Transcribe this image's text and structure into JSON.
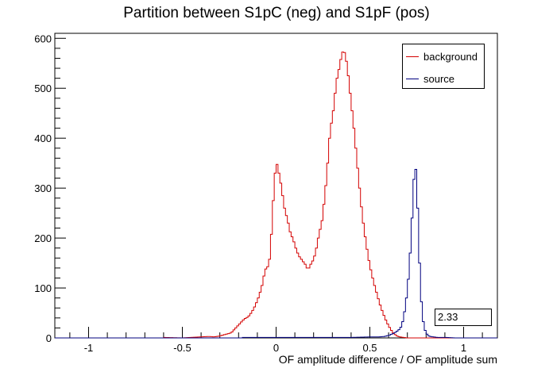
{
  "chart_data": {
    "type": "histogram",
    "title": "Partition between S1pC (neg) and S1pF (pos)",
    "xlabel": "OF amplitude difference / OF amplitude sum",
    "ylabel": "",
    "xlim": [
      -1.18,
      1.18
    ],
    "ylim": [
      0,
      610
    ],
    "x_ticks": [
      -1,
      -0.5,
      0,
      0.5,
      1
    ],
    "x_tick_labels": [
      "-1",
      "-0.5",
      "0",
      "0.5",
      "1"
    ],
    "y_ticks": [
      0,
      100,
      200,
      300,
      400,
      500,
      600
    ],
    "y_tick_labels": [
      "0",
      "100",
      "200",
      "300",
      "400",
      "500",
      "600"
    ],
    "legend": {
      "position": "top-right",
      "entries": [
        "background",
        "source"
      ]
    },
    "stat_box": "2.33",
    "bin_start": -1.18,
    "bin_width": 0.01,
    "series": [
      {
        "name": "background",
        "color": "#d40000",
        "points": [
          [
            -0.6,
            1
          ],
          [
            -0.5,
            0
          ],
          [
            -0.45,
            1
          ],
          [
            -0.4,
            2
          ],
          [
            -0.36,
            3
          ],
          [
            -0.33,
            2
          ],
          [
            -0.3,
            4
          ],
          [
            -0.28,
            6
          ],
          [
            -0.26,
            8
          ],
          [
            -0.24,
            10
          ],
          [
            -0.23,
            14
          ],
          [
            -0.22,
            18
          ],
          [
            -0.21,
            22
          ],
          [
            -0.2,
            26
          ],
          [
            -0.19,
            30
          ],
          [
            -0.18,
            34
          ],
          [
            -0.17,
            38
          ],
          [
            -0.16,
            40
          ],
          [
            -0.15,
            42
          ],
          [
            -0.14,
            46
          ],
          [
            -0.13,
            52
          ],
          [
            -0.12,
            58
          ],
          [
            -0.11,
            66
          ],
          [
            -0.1,
            75
          ],
          [
            -0.09,
            85
          ],
          [
            -0.08,
            98
          ],
          [
            -0.07,
            112
          ],
          [
            -0.06,
            136
          ],
          [
            -0.05,
            140
          ],
          [
            -0.04,
            145
          ],
          [
            -0.03,
            170
          ],
          [
            -0.02,
            245
          ],
          [
            -0.01,
            305
          ],
          [
            0.0,
            355
          ],
          [
            0.01,
            340
          ],
          [
            0.02,
            320
          ],
          [
            0.03,
            300
          ],
          [
            0.04,
            270
          ],
          [
            0.05,
            250
          ],
          [
            0.06,
            240
          ],
          [
            0.07,
            220
          ],
          [
            0.08,
            205
          ],
          [
            0.09,
            200
          ],
          [
            0.1,
            185
          ],
          [
            0.11,
            175
          ],
          [
            0.12,
            165
          ],
          [
            0.13,
            160
          ],
          [
            0.14,
            155
          ],
          [
            0.15,
            150
          ],
          [
            0.16,
            145
          ],
          [
            0.17,
            135
          ],
          [
            0.18,
            145
          ],
          [
            0.19,
            150
          ],
          [
            0.2,
            158
          ],
          [
            0.21,
            170
          ],
          [
            0.22,
            190
          ],
          [
            0.23,
            210
          ],
          [
            0.24,
            225
          ],
          [
            0.25,
            245
          ],
          [
            0.26,
            290
          ],
          [
            0.27,
            320
          ],
          [
            0.28,
            380
          ],
          [
            0.29,
            420
          ],
          [
            0.3,
            440
          ],
          [
            0.31,
            470
          ],
          [
            0.32,
            510
          ],
          [
            0.33,
            530
          ],
          [
            0.34,
            545
          ],
          [
            0.35,
            570
          ],
          [
            0.36,
            575
          ],
          [
            0.37,
            568
          ],
          [
            0.38,
            540
          ],
          [
            0.39,
            510
          ],
          [
            0.4,
            470
          ],
          [
            0.41,
            440
          ],
          [
            0.42,
            400
          ],
          [
            0.43,
            360
          ],
          [
            0.44,
            320
          ],
          [
            0.45,
            280
          ],
          [
            0.46,
            245
          ],
          [
            0.47,
            215
          ],
          [
            0.48,
            190
          ],
          [
            0.49,
            165
          ],
          [
            0.5,
            145
          ],
          [
            0.51,
            128
          ],
          [
            0.52,
            112
          ],
          [
            0.53,
            98
          ],
          [
            0.54,
            85
          ],
          [
            0.55,
            72
          ],
          [
            0.56,
            60
          ],
          [
            0.57,
            50
          ],
          [
            0.58,
            40
          ],
          [
            0.59,
            32
          ],
          [
            0.6,
            24
          ],
          [
            0.61,
            18
          ],
          [
            0.62,
            12
          ],
          [
            0.63,
            8
          ],
          [
            0.64,
            5
          ],
          [
            0.65,
            3
          ],
          [
            0.66,
            2
          ],
          [
            0.68,
            1
          ],
          [
            0.7,
            0
          ]
        ]
      },
      {
        "name": "source",
        "color": "#00007f",
        "points": [
          [
            -0.18,
            1
          ],
          [
            -0.05,
            1
          ],
          [
            0.05,
            1
          ],
          [
            0.2,
            1
          ],
          [
            0.4,
            1
          ],
          [
            0.5,
            2
          ],
          [
            0.55,
            2
          ],
          [
            0.58,
            3
          ],
          [
            0.6,
            5
          ],
          [
            0.62,
            8
          ],
          [
            0.64,
            12
          ],
          [
            0.66,
            18
          ],
          [
            0.67,
            25
          ],
          [
            0.68,
            40
          ],
          [
            0.69,
            65
          ],
          [
            0.7,
            95
          ],
          [
            0.71,
            140
          ],
          [
            0.72,
            200
          ],
          [
            0.73,
            280
          ],
          [
            0.74,
            355
          ],
          [
            0.75,
            320
          ],
          [
            0.76,
            200
          ],
          [
            0.77,
            100
          ],
          [
            0.78,
            45
          ],
          [
            0.79,
            20
          ],
          [
            0.8,
            10
          ],
          [
            0.81,
            5
          ],
          [
            0.82,
            3
          ],
          [
            0.84,
            2
          ],
          [
            0.86,
            1
          ],
          [
            0.9,
            1
          ],
          [
            0.95,
            0
          ],
          [
            1.0,
            0
          ]
        ]
      }
    ]
  }
}
